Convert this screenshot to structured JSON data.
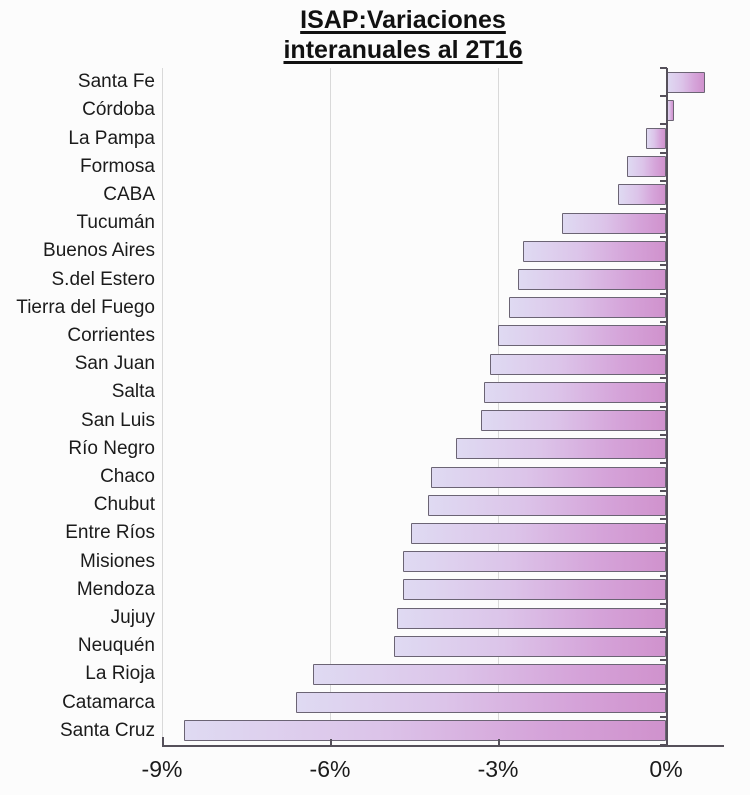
{
  "title": {
    "line1": "ISAP:Variaciones",
    "line2": "interanuales al 2T16"
  },
  "chart_data": {
    "type": "bar",
    "orientation": "horizontal",
    "title": "ISAP:Variaciones interanuales al 2T16",
    "xlabel": "",
    "ylabel": "",
    "unit": "%",
    "xlim": [
      -9,
      1.41
    ],
    "grid": "vertical",
    "legend": "none",
    "categories": [
      "Santa Fe",
      "Córdoba",
      "La Pampa",
      "Formosa",
      "CABA",
      "Tucumán",
      "Buenos Aires",
      "S.del Estero",
      "Tierra del Fuego",
      "Corrientes",
      "San Juan",
      "Salta",
      "San Luis",
      "Río Negro",
      "Chaco",
      "Chubut",
      "Entre Ríos",
      "Misiones",
      "Mendoza",
      "Jujuy",
      "Neuquén",
      "La Rioja",
      "Catamarca",
      "Santa Cruz"
    ],
    "values": [
      0.7,
      0.15,
      -0.35,
      -0.7,
      -0.85,
      -1.85,
      -2.55,
      -2.65,
      -2.8,
      -3.0,
      -3.15,
      -3.25,
      -3.3,
      -3.75,
      -4.2,
      -4.25,
      -4.55,
      -4.7,
      -4.7,
      -4.8,
      -4.85,
      -6.3,
      -6.6,
      -8.6
    ],
    "x_ticks": [
      {
        "value": -9,
        "label": "-9%"
      },
      {
        "value": -6,
        "label": "-6%"
      },
      {
        "value": -3,
        "label": "-3%"
      },
      {
        "value": 0,
        "label": "0%"
      }
    ]
  },
  "colors": {
    "background": "#fcfcfc",
    "axis": "#55505a",
    "gridline": "#d9d9d9",
    "text": "#1b1b1b",
    "bar_fill_light": "#dfdaf2",
    "bar_fill_dark": "#d092cd",
    "bar_border": "#6b6474"
  }
}
